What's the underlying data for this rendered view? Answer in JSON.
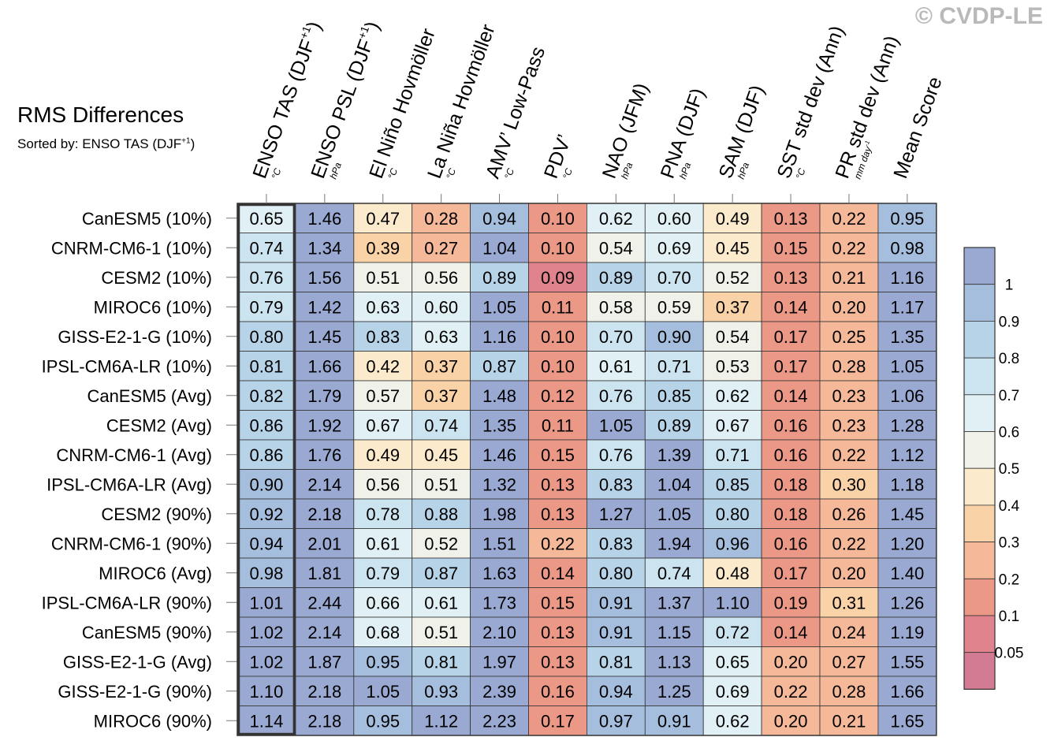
{
  "watermark": "© CVDP-LE",
  "chart_data": {
    "type": "heatmap",
    "title": "RMS Differences",
    "subtitle_prefix": "Sorted by: ENSO TAS (DJF",
    "subtitle_sup": "+1",
    "subtitle_suffix": ")",
    "columns": [
      {
        "label": "ENSO TAS (DJF",
        "sup": "+1",
        "suffix": ")",
        "unit": "°C"
      },
      {
        "label": "ENSO PSL (DJF",
        "sup": "+1",
        "suffix": ")",
        "unit": "hPa"
      },
      {
        "label": "El Niño Hovmöller",
        "sup": "",
        "suffix": "",
        "unit": "°C"
      },
      {
        "label": "La Niña Hovmöller",
        "sup": "",
        "suffix": "",
        "unit": "°C"
      },
      {
        "label": "AMV’ Low-Pass",
        "sup": "",
        "suffix": "",
        "unit": "°C"
      },
      {
        "label": "PDV’",
        "sup": "",
        "suffix": "",
        "unit": "°C"
      },
      {
        "label": "NAO (JFM)",
        "sup": "",
        "suffix": "",
        "unit": "hPa"
      },
      {
        "label": "PNA (DJF)",
        "sup": "",
        "suffix": "",
        "unit": "hPa"
      },
      {
        "label": "SAM (DJF)",
        "sup": "",
        "suffix": "",
        "unit": "hPa"
      },
      {
        "label": "SST std dev (Ann)",
        "sup": "",
        "suffix": "",
        "unit": "°C"
      },
      {
        "label": "PR std dev (Ann)",
        "sup": "",
        "suffix": "",
        "unit": "mm day",
        "unit_sup": "-1"
      },
      {
        "label": "Mean Score",
        "sup": "",
        "suffix": "",
        "unit": ""
      }
    ],
    "rows": [
      "CanESM5 (10%)",
      "CNRM-CM6-1 (10%)",
      "CESM2 (10%)",
      "MIROC6 (10%)",
      "GISS-E2-1-G (10%)",
      "IPSL-CM6A-LR (10%)",
      "CanESM5 (Avg)",
      "CESM2 (Avg)",
      "CNRM-CM6-1 (Avg)",
      "IPSL-CM6A-LR (Avg)",
      "CESM2 (90%)",
      "CNRM-CM6-1 (90%)",
      "MIROC6 (Avg)",
      "IPSL-CM6A-LR (90%)",
      "CanESM5 (90%)",
      "GISS-E2-1-G (Avg)",
      "GISS-E2-1-G (90%)",
      "MIROC6 (90%)"
    ],
    "values": [
      [
        0.65,
        1.46,
        0.47,
        0.28,
        0.94,
        0.1,
        0.62,
        0.6,
        0.49,
        0.13,
        0.22,
        0.95
      ],
      [
        0.74,
        1.34,
        0.39,
        0.27,
        1.04,
        0.1,
        0.54,
        0.69,
        0.45,
        0.15,
        0.22,
        0.98
      ],
      [
        0.76,
        1.56,
        0.51,
        0.56,
        0.89,
        0.09,
        0.89,
        0.7,
        0.52,
        0.13,
        0.21,
        1.16
      ],
      [
        0.79,
        1.42,
        0.63,
        0.6,
        1.05,
        0.11,
        0.58,
        0.59,
        0.37,
        0.14,
        0.2,
        1.17
      ],
      [
        0.8,
        1.45,
        0.83,
        0.63,
        1.16,
        0.1,
        0.7,
        0.9,
        0.54,
        0.17,
        0.25,
        1.35
      ],
      [
        0.81,
        1.66,
        0.42,
        0.37,
        0.87,
        0.1,
        0.61,
        0.71,
        0.53,
        0.17,
        0.28,
        1.05
      ],
      [
        0.82,
        1.79,
        0.57,
        0.37,
        1.48,
        0.12,
        0.76,
        0.85,
        0.62,
        0.14,
        0.23,
        1.06
      ],
      [
        0.86,
        1.92,
        0.67,
        0.74,
        1.35,
        0.11,
        1.05,
        0.89,
        0.67,
        0.16,
        0.23,
        1.28
      ],
      [
        0.86,
        1.76,
        0.49,
        0.45,
        1.46,
        0.15,
        0.76,
        1.39,
        0.71,
        0.16,
        0.22,
        1.12
      ],
      [
        0.9,
        2.14,
        0.56,
        0.51,
        1.32,
        0.13,
        0.83,
        1.04,
        0.85,
        0.18,
        0.3,
        1.18
      ],
      [
        0.92,
        2.18,
        0.78,
        0.88,
        1.98,
        0.13,
        1.27,
        1.05,
        0.8,
        0.18,
        0.26,
        1.45
      ],
      [
        0.94,
        2.01,
        0.61,
        0.52,
        1.51,
        0.22,
        0.83,
        1.94,
        0.96,
        0.16,
        0.22,
        1.2
      ],
      [
        0.98,
        1.81,
        0.79,
        0.87,
        1.63,
        0.14,
        0.8,
        0.74,
        0.48,
        0.17,
        0.2,
        1.4
      ],
      [
        1.01,
        2.44,
        0.66,
        0.61,
        1.73,
        0.15,
        0.91,
        1.37,
        1.1,
        0.19,
        0.31,
        1.26
      ],
      [
        1.02,
        2.14,
        0.68,
        0.51,
        2.1,
        0.13,
        0.91,
        1.15,
        0.72,
        0.14,
        0.24,
        1.19
      ],
      [
        1.02,
        1.87,
        0.95,
        0.81,
        1.97,
        0.13,
        0.81,
        1.13,
        0.65,
        0.2,
        0.27,
        1.55
      ],
      [
        1.1,
        2.18,
        1.05,
        0.93,
        2.39,
        0.16,
        0.94,
        1.25,
        0.69,
        0.22,
        0.28,
        1.66
      ],
      [
        1.14,
        2.18,
        0.95,
        1.12,
        2.23,
        0.17,
        0.97,
        0.91,
        0.62,
        0.2,
        0.21,
        1.65
      ]
    ],
    "sorted_column": 0,
    "colorbar": {
      "labels": [
        "1",
        "0.9",
        "0.8",
        "0.7",
        "0.6",
        "0.5",
        "0.4",
        "0.3",
        "0.2",
        "0.1",
        "0.05"
      ],
      "colors": [
        "#99a9d2",
        "#a6bedd",
        "#b7d3e8",
        "#cce4ef",
        "#e1f0f4",
        "#f0f2ea",
        "#fbeacb",
        "#f9d2a8",
        "#f5b898",
        "#ec9887",
        "#e1838c",
        "#d27b92"
      ],
      "thresholds": [
        0.05,
        0.1,
        0.2,
        0.3,
        0.4,
        0.5,
        0.6,
        0.7,
        0.8,
        0.9,
        1.0
      ]
    }
  }
}
